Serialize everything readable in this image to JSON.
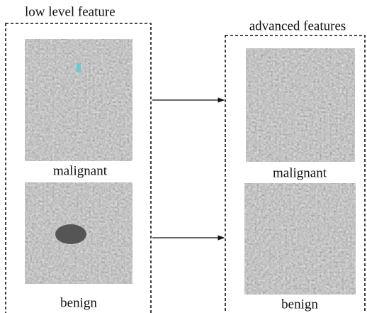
{
  "left_panel": {
    "title": "low level feature",
    "images": [
      {
        "label": "malignant"
      },
      {
        "label": "benign"
      }
    ]
  },
  "right_panel": {
    "title": "advanced features",
    "images": [
      {
        "label": "malignant"
      },
      {
        "label": "benign"
      }
    ]
  }
}
